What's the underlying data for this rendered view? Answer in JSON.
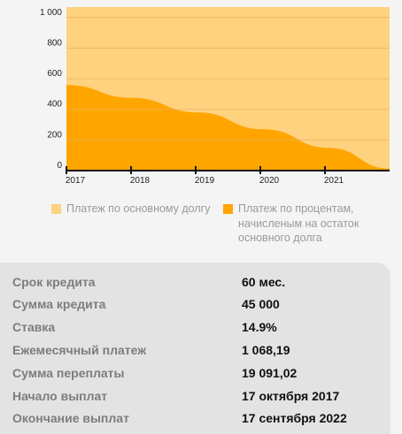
{
  "chart_data": {
    "type": "area",
    "y_ticks": [
      "0",
      "200",
      "400",
      "600",
      "800",
      "1 000"
    ],
    "x_ticks": [
      "2017",
      "2018",
      "2019",
      "2020",
      "2021"
    ],
    "ylim": [
      0,
      1068.19
    ],
    "x_range": [
      "2017-10",
      "2022-09"
    ],
    "x": [
      "2017-10",
      "2018-10",
      "2019-10",
      "2020-10",
      "2021-10",
      "2022-09"
    ],
    "series": [
      {
        "name": "Платеж по основному долгу",
        "color": "#ffd27f",
        "values": [
          1068.19,
          1068.19,
          1068.19,
          1068.19,
          1068.19,
          1068.19
        ]
      },
      {
        "name": "Платеж по процентам, начисленым на остаток основного долга",
        "color": "#ffa500",
        "values": [
          559,
          475,
          380,
          270,
          148,
          13
        ]
      }
    ],
    "grid": true
  },
  "legend": {
    "principal": {
      "label": "Платеж по основному долгу",
      "color": "#ffd27f"
    },
    "interest": {
      "label": "Платеж по процентам, начисленым на остаток основного долга",
      "color": "#ffa500"
    }
  },
  "summary": [
    {
      "label": "Срок кредита",
      "value": "60 мес."
    },
    {
      "label": "Сумма кредита",
      "value": "45 000"
    },
    {
      "label": "Ставка",
      "value": "14.9%"
    },
    {
      "label": "Ежемесячный платеж",
      "value": "1 068,19"
    },
    {
      "label": "Сумма переплаты",
      "value": "19 091,02"
    },
    {
      "label": "Начало выплат",
      "value": "17 октября 2017"
    },
    {
      "label": "Окончание выплат",
      "value": "17 сентября 2022"
    }
  ]
}
